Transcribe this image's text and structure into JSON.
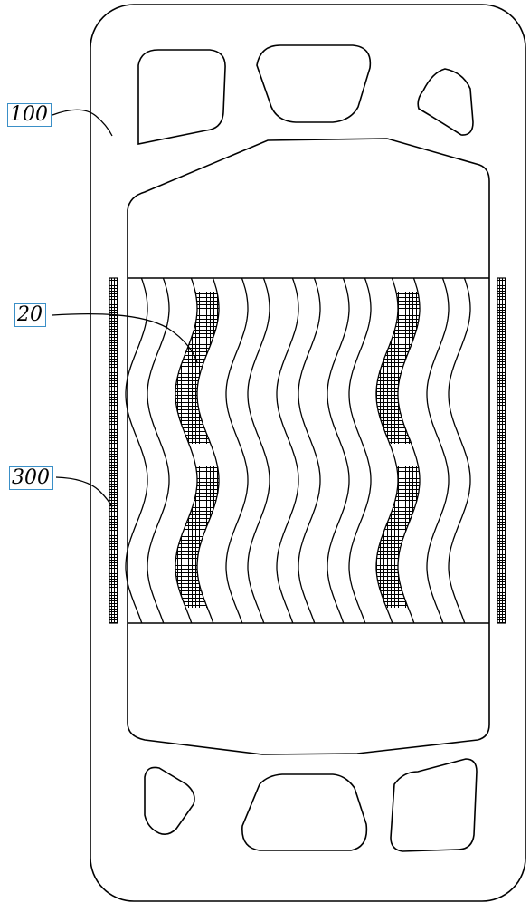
{
  "labels": {
    "plate": "100",
    "corrugation": "20",
    "gasket_strip": "300"
  },
  "colors": {
    "line": "#000000",
    "background": "#ffffff",
    "label_border": "#3a8fc7"
  }
}
